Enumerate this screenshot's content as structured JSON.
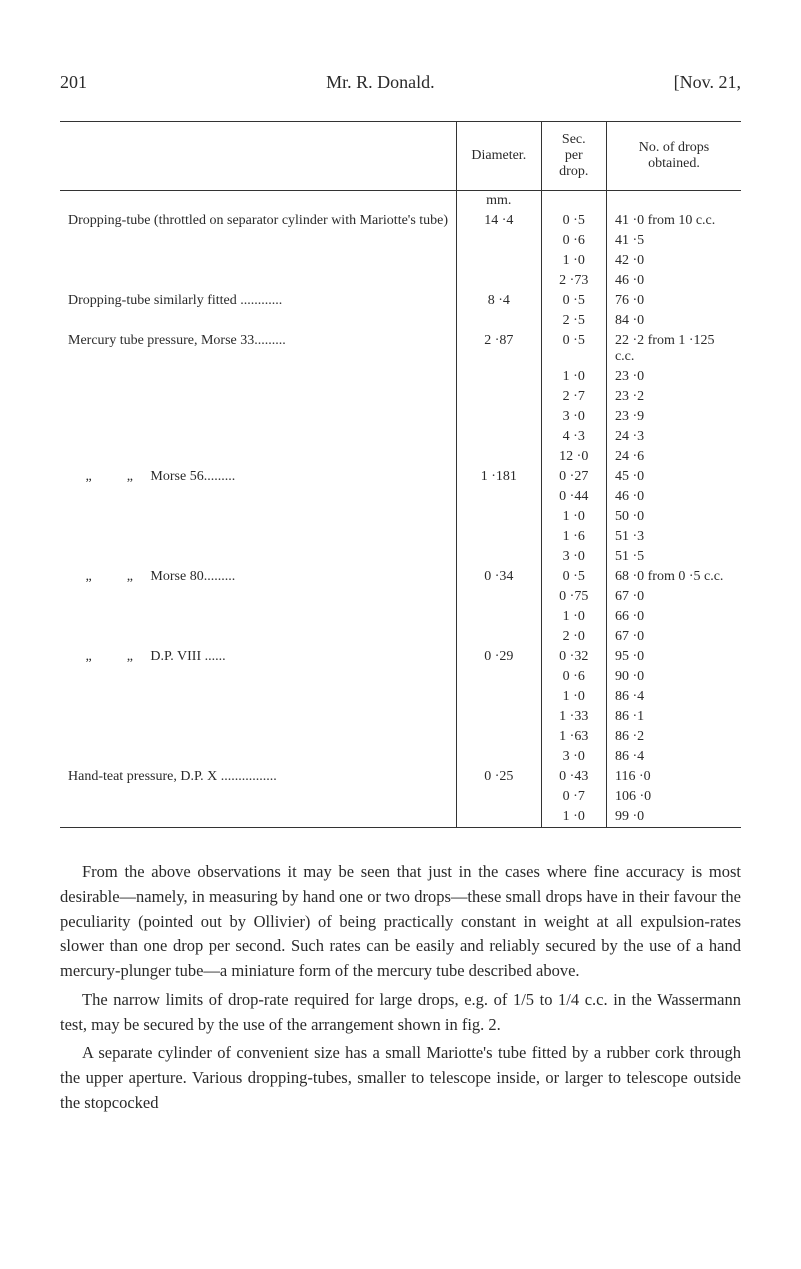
{
  "header": {
    "page_number": "201",
    "author": "Mr. R. Donald.",
    "date_ref": "[Nov. 21,"
  },
  "table": {
    "columns": {
      "description": "",
      "diameter": "Diameter.",
      "sec": "Sec.\nper drop.",
      "drops": "No. of drops obtained."
    },
    "unit_label": "mm.",
    "groups": [
      {
        "description": "Dropping-tube (throttled on separator cylinder with Mariotte's tube)",
        "diameter": "14 ·4",
        "rows": [
          {
            "sec": "0 ·5",
            "drops": "41 ·0 from 10 c.c."
          },
          {
            "sec": "0 ·6",
            "drops": "41 ·5"
          },
          {
            "sec": "1 ·0",
            "drops": "42 ·0"
          },
          {
            "sec": "2 ·73",
            "drops": "46 ·0"
          }
        ]
      },
      {
        "description": "Dropping-tube similarly fitted ............",
        "diameter": "8 ·4",
        "rows": [
          {
            "sec": "0 ·5",
            "drops": "76 ·0"
          },
          {
            "sec": "2 ·5",
            "drops": "84 ·0"
          }
        ]
      },
      {
        "description": "Mercury tube pressure, Morse 33.........",
        "diameter": "2 ·87",
        "rows": [
          {
            "sec": "0 ·5",
            "drops": "22 ·2 from 1 ·125 c.c."
          },
          {
            "sec": "1 ·0",
            "drops": "23 ·0"
          },
          {
            "sec": "2 ·7",
            "drops": "23 ·2"
          },
          {
            "sec": "3 ·0",
            "drops": "23 ·9"
          },
          {
            "sec": "4 ·3",
            "drops": "24 ·3"
          },
          {
            "sec": "12 ·0",
            "drops": "24 ·6"
          }
        ]
      },
      {
        "description": "     „          „     Morse 56.........",
        "diameter": "1 ·181",
        "rows": [
          {
            "sec": "0 ·27",
            "drops": "45 ·0"
          },
          {
            "sec": "0 ·44",
            "drops": "46 ·0"
          },
          {
            "sec": "1 ·0",
            "drops": "50 ·0"
          },
          {
            "sec": "1 ·6",
            "drops": "51 ·3"
          },
          {
            "sec": "3 ·0",
            "drops": "51 ·5"
          }
        ]
      },
      {
        "description": "     „          „     Morse 80.........",
        "diameter": "0 ·34",
        "rows": [
          {
            "sec": "0 ·5",
            "drops": "68 ·0 from 0 ·5 c.c."
          },
          {
            "sec": "0 ·75",
            "drops": "67 ·0"
          },
          {
            "sec": "1 ·0",
            "drops": "66 ·0"
          },
          {
            "sec": "2 ·0",
            "drops": "67 ·0"
          }
        ]
      },
      {
        "description": "     „          „     D.P. VIII ......",
        "diameter": "0 ·29",
        "rows": [
          {
            "sec": "0 ·32",
            "drops": "95 ·0"
          },
          {
            "sec": "0 ·6",
            "drops": "90 ·0"
          },
          {
            "sec": "1 ·0",
            "drops": "86 ·4"
          },
          {
            "sec": "1 ·33",
            "drops": "86 ·1"
          },
          {
            "sec": "1 ·63",
            "drops": "86 ·2"
          },
          {
            "sec": "3 ·0",
            "drops": "86 ·4"
          }
        ]
      },
      {
        "description": "Hand-teat pressure, D.P. X ................",
        "diameter": "0 ·25",
        "rows": [
          {
            "sec": "0 ·43",
            "drops": "116 ·0"
          },
          {
            "sec": "0 ·7",
            "drops": "106 ·0"
          },
          {
            "sec": "1 ·0",
            "drops": "99 ·0"
          }
        ]
      }
    ]
  },
  "paragraphs": [
    "From the above observations it may be seen that just in the cases where fine accuracy is most desirable—namely, in measuring by hand one or two drops—these small drops have in their favour the peculiarity (pointed out by Ollivier) of being practically constant in weight at all expulsion-rates slower than one drop per second. Such rates can be easily and reliably secured by the use of a hand mercury-plunger tube—a miniature form of the mercury tube described above.",
    "The narrow limits of drop-rate required for large drops, e.g. of 1/5 to 1/4 c.c. in the Wassermann test, may be secured by the use of the arrangement shown in fig. 2.",
    "A separate cylinder of convenient size has a small Mariotte's tube fitted by a rubber cork through the upper aperture. Various dropping-tubes, smaller to telescope inside, or larger to telescope outside the stopcocked"
  ]
}
